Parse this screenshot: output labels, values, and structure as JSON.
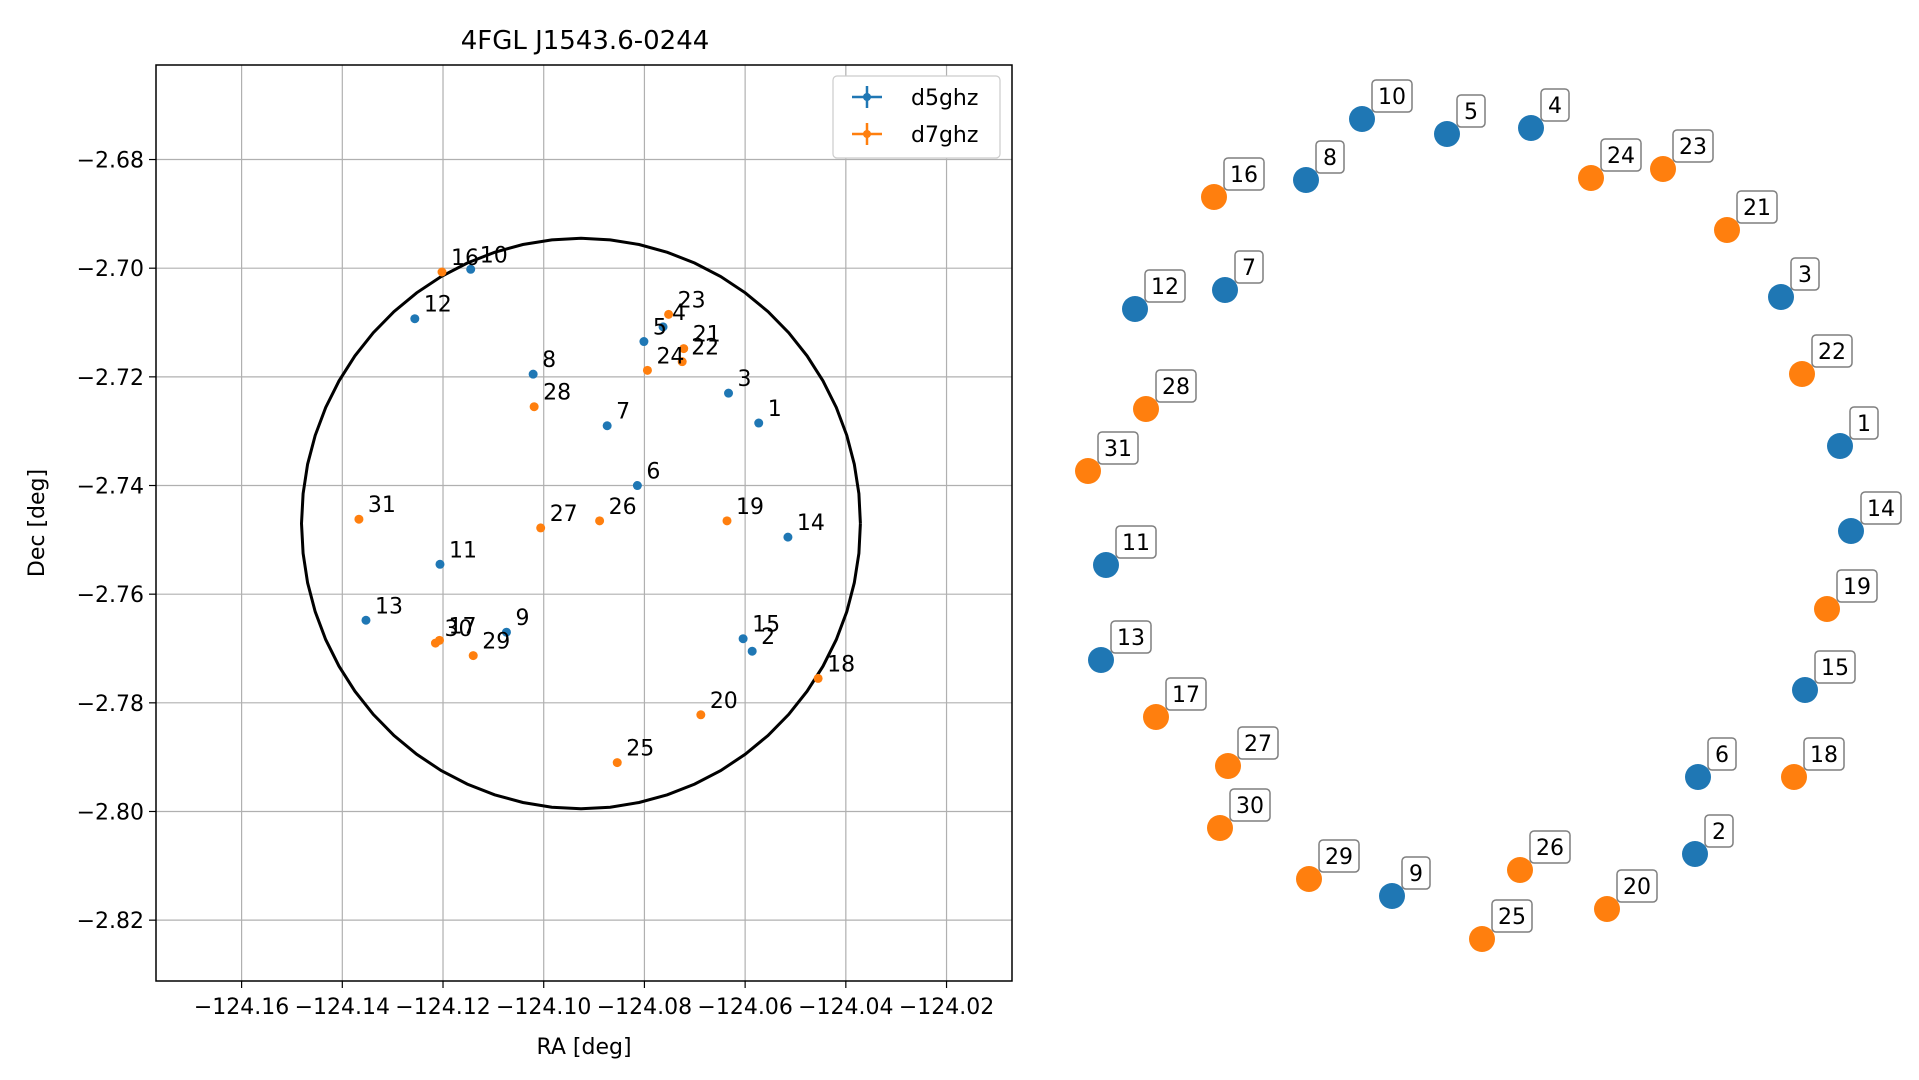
{
  "chart_data": [
    {
      "type": "scatter",
      "title": "4FGL J1543.6-0244",
      "xlabel": "RA [deg]",
      "ylabel": "Dec [deg]",
      "xlim": [
        -124.177,
        -124.007
      ],
      "ylim": [
        -2.8312,
        -2.6626
      ],
      "xticks": [
        -124.16,
        -124.14,
        -124.12,
        -124.1,
        -124.08,
        -124.06,
        -124.04,
        -124.02
      ],
      "xtick_labels": [
        "−124.16",
        "−124.14",
        "−124.12",
        "−124.10",
        "−124.08",
        "−124.06",
        "−124.04",
        "−124.02"
      ],
      "yticks": [
        -2.68,
        -2.7,
        -2.72,
        -2.74,
        -2.76,
        -2.78,
        -2.8,
        -2.82
      ],
      "ytick_labels": [
        "−2.68",
        "−2.70",
        "−2.72",
        "−2.74",
        "−2.76",
        "−2.78",
        "−2.80",
        "−2.82"
      ],
      "grid": true,
      "legend_position": "top-right",
      "circle": {
        "center": [
          -124.0926,
          -2.747
        ],
        "radius_ra": 0.0555,
        "radius_dec": 0.0525
      },
      "series": [
        {
          "name": "d5ghz",
          "color": "#1f77b4",
          "points": [
            {
              "id": "1",
              "ra": -124.0573,
              "dec": -2.7285
            },
            {
              "id": "2",
              "ra": -124.0586,
              "dec": -2.7705
            },
            {
              "id": "3",
              "ra": -124.0633,
              "dec": -2.723
            },
            {
              "id": "4",
              "ra": -124.0763,
              "dec": -2.7108
            },
            {
              "id": "5",
              "ra": -124.0801,
              "dec": -2.7135
            },
            {
              "id": "6",
              "ra": -124.0814,
              "dec": -2.74
            },
            {
              "id": "7",
              "ra": -124.0874,
              "dec": -2.729
            },
            {
              "id": "8",
              "ra": -124.1021,
              "dec": -2.7195
            },
            {
              "id": "9",
              "ra": -124.1074,
              "dec": -2.767
            },
            {
              "id": "10",
              "ra": -124.1145,
              "dec": -2.7002
            },
            {
              "id": "11",
              "ra": -124.1206,
              "dec": -2.7545
            },
            {
              "id": "12",
              "ra": -124.1256,
              "dec": -2.7093
            },
            {
              "id": "13",
              "ra": -124.1353,
              "dec": -2.7648
            },
            {
              "id": "14",
              "ra": -124.0515,
              "dec": -2.7495
            },
            {
              "id": "15",
              "ra": -124.0604,
              "dec": -2.7682
            }
          ]
        },
        {
          "name": "d7ghz",
          "color": "#ff7f0e",
          "points": [
            {
              "id": "16",
              "ra": -124.1202,
              "dec": -2.7007
            },
            {
              "id": "17",
              "ra": -124.1207,
              "dec": -2.7685
            },
            {
              "id": "18",
              "ra": -124.0455,
              "dec": -2.7755
            },
            {
              "id": "19",
              "ra": -124.0636,
              "dec": -2.7465
            },
            {
              "id": "20",
              "ra": -124.0688,
              "dec": -2.7822
            },
            {
              "id": "21",
              "ra": -124.0722,
              "dec": -2.7148
            },
            {
              "id": "22",
              "ra": -124.0725,
              "dec": -2.7172
            },
            {
              "id": "23",
              "ra": -124.0752,
              "dec": -2.7085
            },
            {
              "id": "24",
              "ra": -124.0794,
              "dec": -2.7188
            },
            {
              "id": "25",
              "ra": -124.0854,
              "dec": -2.791
            },
            {
              "id": "26",
              "ra": -124.0889,
              "dec": -2.7465
            },
            {
              "id": "27",
              "ra": -124.1006,
              "dec": -2.7478
            },
            {
              "id": "28",
              "ra": -124.1019,
              "dec": -2.7255
            },
            {
              "id": "29",
              "ra": -124.114,
              "dec": -2.7713
            },
            {
              "id": "30",
              "ra": -124.1215,
              "dec": -2.769
            },
            {
              "id": "31",
              "ra": -124.1367,
              "dec": -2.7462
            }
          ]
        }
      ]
    },
    {
      "type": "scatter",
      "title": "",
      "points": [
        {
          "id": "1",
          "series": "d5ghz"
        },
        {
          "id": "2",
          "series": "d5ghz"
        },
        {
          "id": "3",
          "series": "d5ghz"
        },
        {
          "id": "4",
          "series": "d5ghz"
        },
        {
          "id": "5",
          "series": "d5ghz"
        },
        {
          "id": "6",
          "series": "d5ghz"
        },
        {
          "id": "7",
          "series": "d5ghz"
        },
        {
          "id": "8",
          "series": "d5ghz"
        },
        {
          "id": "9",
          "series": "d5ghz"
        },
        {
          "id": "10",
          "series": "d5ghz"
        },
        {
          "id": "11",
          "series": "d5ghz"
        },
        {
          "id": "12",
          "series": "d5ghz"
        },
        {
          "id": "13",
          "series": "d5ghz"
        },
        {
          "id": "14",
          "series": "d5ghz"
        },
        {
          "id": "15",
          "series": "d5ghz"
        },
        {
          "id": "16",
          "series": "d7ghz"
        },
        {
          "id": "17",
          "series": "d7ghz"
        },
        {
          "id": "18",
          "series": "d7ghz"
        },
        {
          "id": "19",
          "series": "d7ghz"
        },
        {
          "id": "20",
          "series": "d7ghz"
        },
        {
          "id": "21",
          "series": "d7ghz"
        },
        {
          "id": "22",
          "series": "d7ghz"
        },
        {
          "id": "23",
          "series": "d7ghz"
        },
        {
          "id": "24",
          "series": "d7ghz"
        },
        {
          "id": "25",
          "series": "d7ghz"
        },
        {
          "id": "26",
          "series": "d7ghz"
        },
        {
          "id": "27",
          "series": "d7ghz"
        },
        {
          "id": "28",
          "series": "d7ghz"
        },
        {
          "id": "29",
          "series": "d7ghz"
        },
        {
          "id": "30",
          "series": "d7ghz"
        },
        {
          "id": "31",
          "series": "d7ghz"
        }
      ]
    }
  ]
}
